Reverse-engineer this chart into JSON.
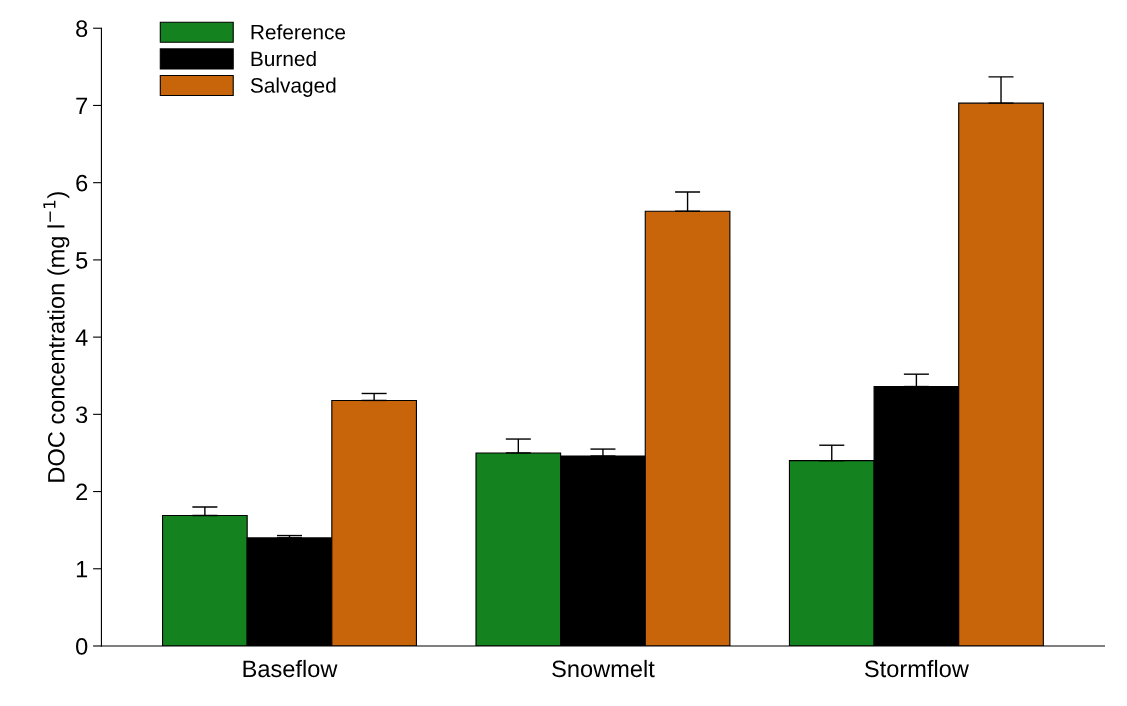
{
  "chart_data": {
    "type": "bar",
    "ylabel": "DOC concentration (mg l$^{−1}$)",
    "categories": [
      "Baseflow",
      "Snowmelt",
      "Stormflow"
    ],
    "series": [
      {
        "name": "Reference",
        "color": "#14821e",
        "values": [
          1.69,
          2.5,
          2.4
        ],
        "errors": [
          [
            1.69,
            1.8
          ],
          [
            2.5,
            2.68
          ],
          [
            2.4,
            2.6
          ]
        ]
      },
      {
        "name": "Burned",
        "color": "#000000",
        "values": [
          1.4,
          2.46,
          3.36
        ],
        "errors": [
          [
            1.4,
            1.43
          ],
          [
            2.46,
            2.55
          ],
          [
            3.36,
            3.52
          ]
        ]
      },
      {
        "name": "Salvaged",
        "color": "#c8650a",
        "values": [
          3.18,
          5.63,
          7.03
        ],
        "errors": [
          [
            3.18,
            3.27
          ],
          [
            5.63,
            5.88
          ],
          [
            7.03,
            7.37
          ]
        ]
      }
    ],
    "ylim": [
      0,
      8
    ],
    "yticks": [
      0,
      1,
      2,
      3,
      4,
      5,
      6,
      7,
      8
    ],
    "grid": false,
    "legend": "top left"
  }
}
